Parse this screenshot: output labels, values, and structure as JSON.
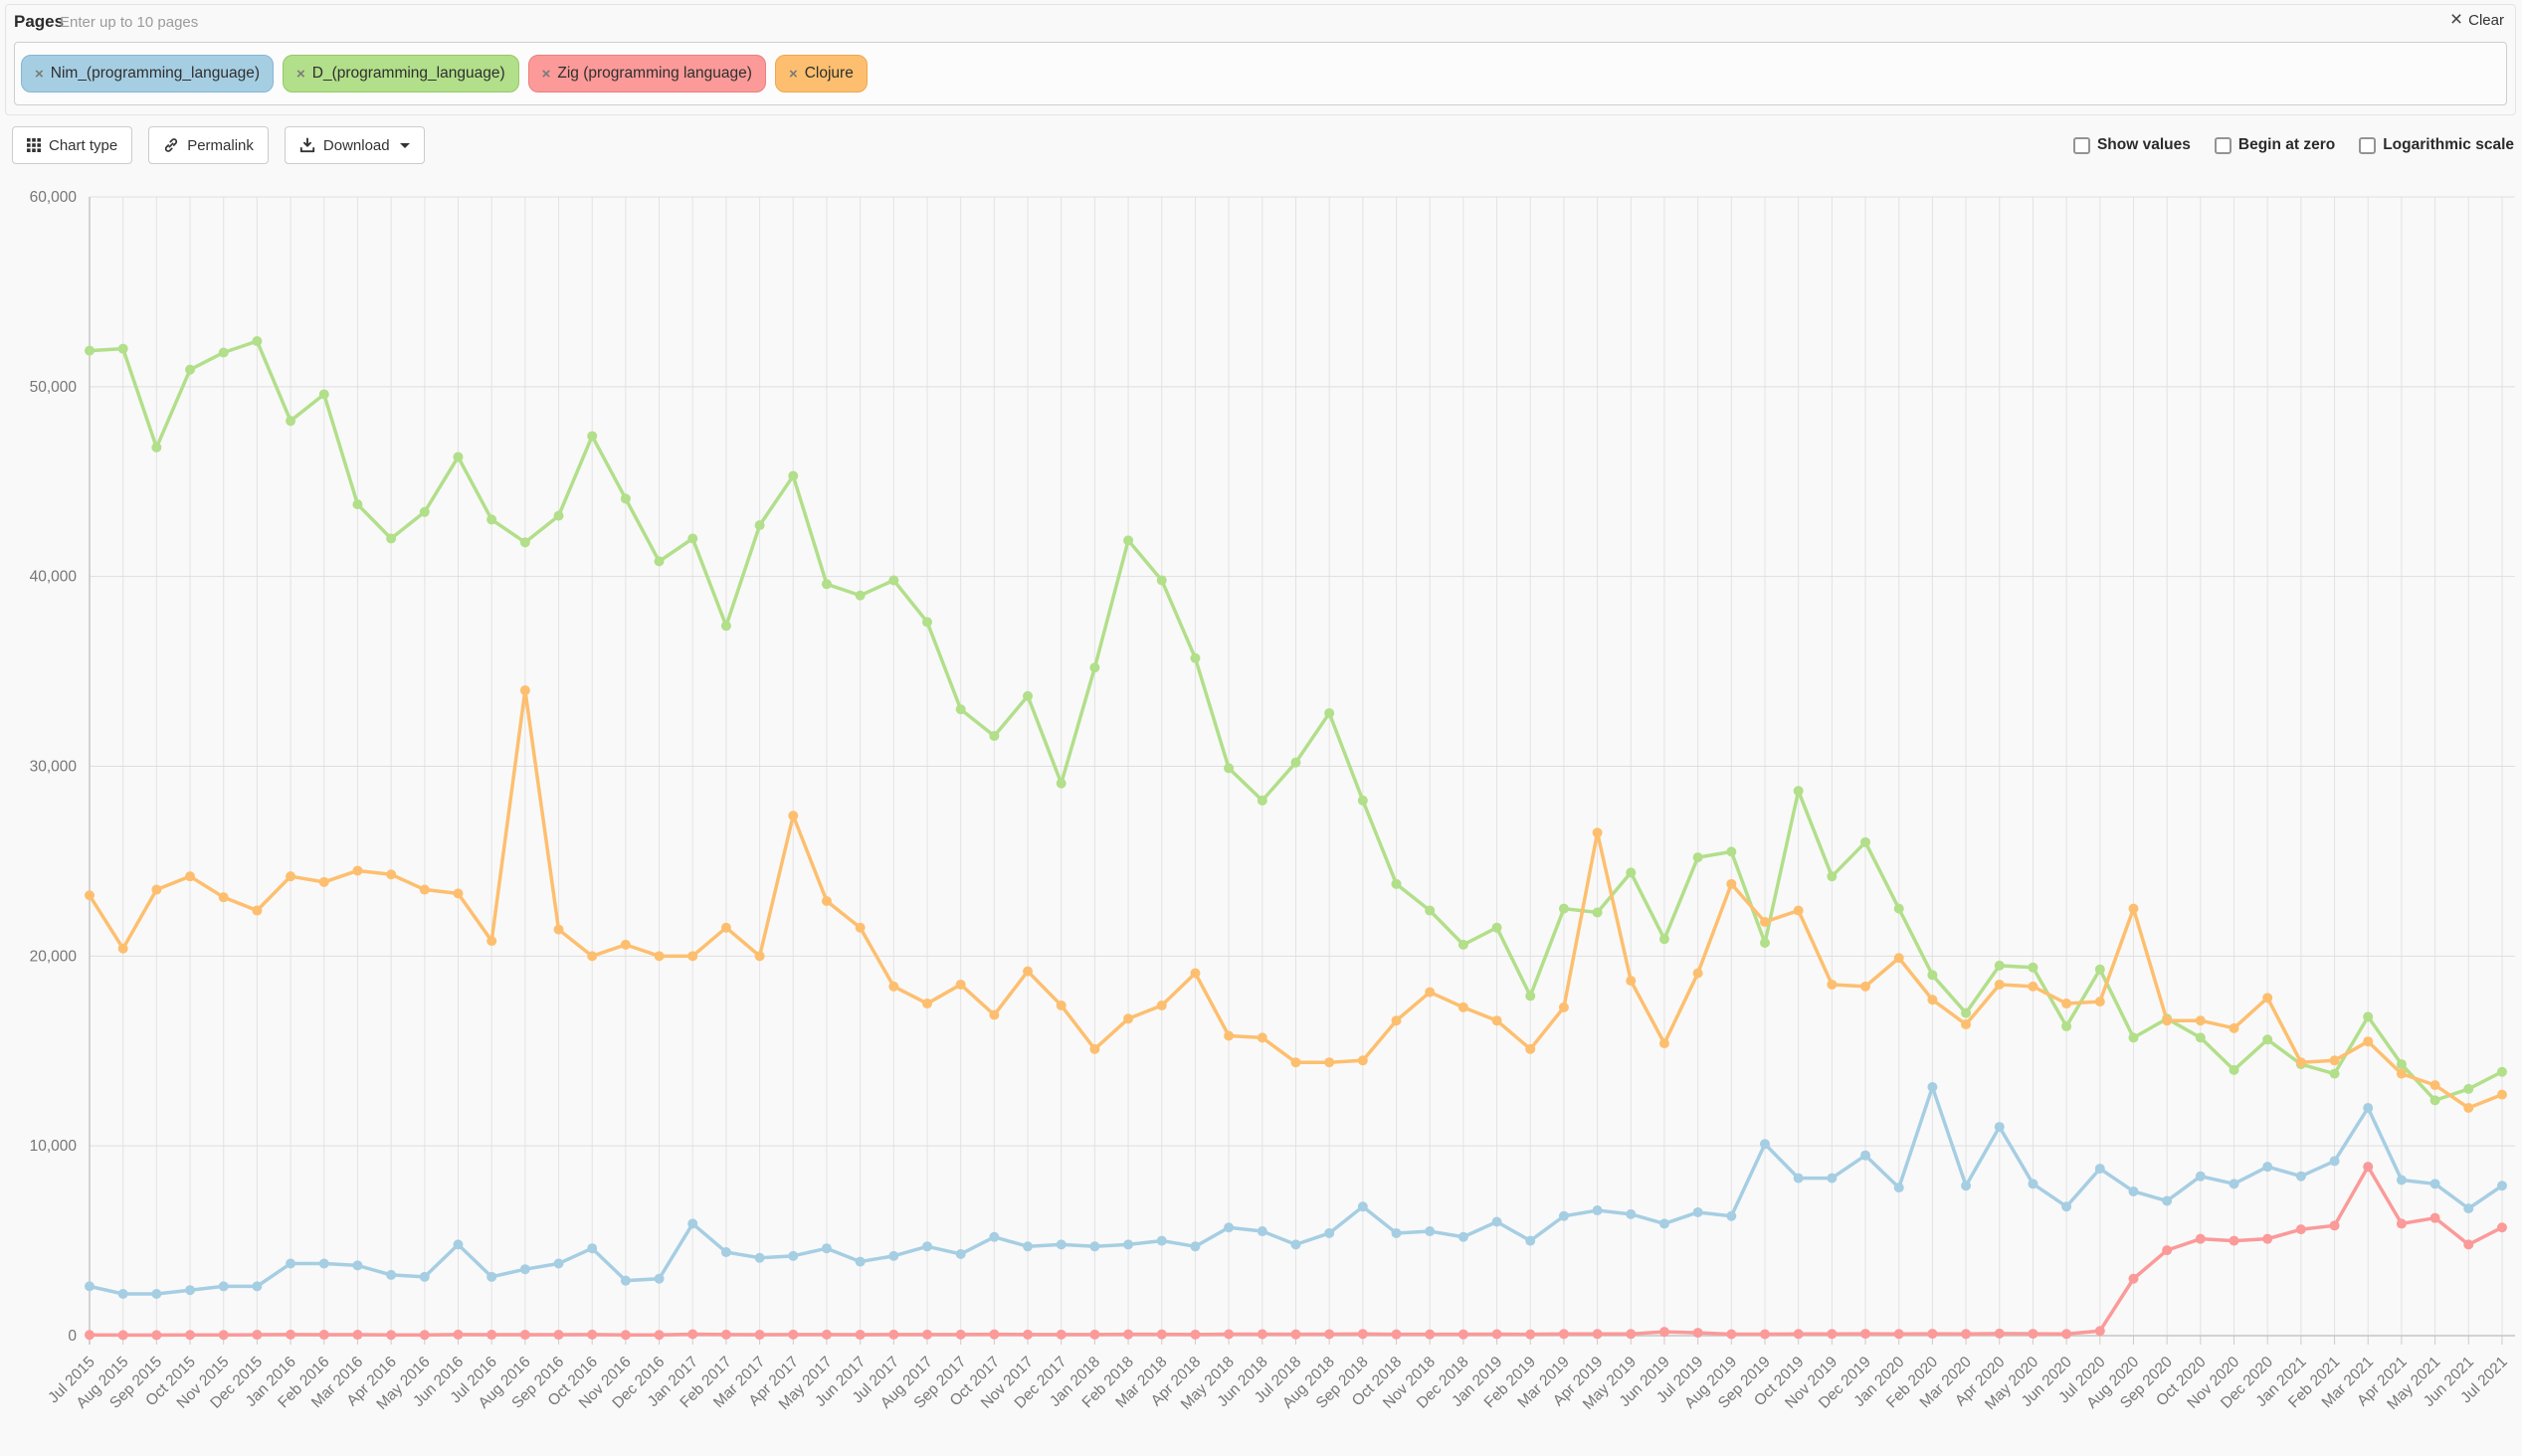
{
  "header": {
    "pages_label": "Pages",
    "pages_placeholder": "Enter up to 10 pages",
    "clear_icon": "×",
    "clear_label": "Clear"
  },
  "chips": [
    {
      "label": "Nim_(programming_language)",
      "remove_icon": "×",
      "color": "#a6cee3",
      "border": "#86b6d4"
    },
    {
      "label": "D_(programming_language)",
      "remove_icon": "×",
      "color": "#b2df8a",
      "border": "#94c96a"
    },
    {
      "label": "Zig (programming language)",
      "remove_icon": "×",
      "color": "#fb9a99",
      "border": "#ec7f7e"
    },
    {
      "label": "Clojure",
      "remove_icon": "×",
      "color": "#fdbf6f",
      "border": "#eda84e"
    }
  ],
  "toolbar": {
    "chart_type_label": "Chart type",
    "permalink_label": "Permalink",
    "download_label": "Download",
    "options": [
      {
        "label": "Show values",
        "checked": false
      },
      {
        "label": "Begin at zero",
        "checked": false
      },
      {
        "label": "Logarithmic scale",
        "checked": false
      }
    ]
  },
  "chart_data": {
    "type": "line",
    "title": "",
    "xlabel": "",
    "ylabel": "",
    "ylim": [
      0,
      60000
    ],
    "ytick_step": 10000,
    "grid": true,
    "legend_position": "chips-above-chart",
    "x": [
      "Jul 2015",
      "Aug 2015",
      "Sep 2015",
      "Oct 2015",
      "Nov 2015",
      "Dec 2015",
      "Jan 2016",
      "Feb 2016",
      "Mar 2016",
      "Apr 2016",
      "May 2016",
      "Jun 2016",
      "Jul 2016",
      "Aug 2016",
      "Sep 2016",
      "Oct 2016",
      "Nov 2016",
      "Dec 2016",
      "Jan 2017",
      "Feb 2017",
      "Mar 2017",
      "Apr 2017",
      "May 2017",
      "Jun 2017",
      "Jul 2017",
      "Aug 2017",
      "Sep 2017",
      "Oct 2017",
      "Nov 2017",
      "Dec 2017",
      "Jan 2018",
      "Feb 2018",
      "Mar 2018",
      "Apr 2018",
      "May 2018",
      "Jun 2018",
      "Jul 2018",
      "Aug 2018",
      "Sep 2018",
      "Oct 2018",
      "Nov 2018",
      "Dec 2018",
      "Jan 2019",
      "Feb 2019",
      "Mar 2019",
      "Apr 2019",
      "May 2019",
      "Jun 2019",
      "Jul 2019",
      "Aug 2019",
      "Sep 2019",
      "Oct 2019",
      "Nov 2019",
      "Dec 2019",
      "Jan 2020",
      "Feb 2020",
      "Mar 2020",
      "Apr 2020",
      "May 2020",
      "Jun 2020",
      "Jul 2020",
      "Aug 2020",
      "Sep 2020",
      "Oct 2020",
      "Nov 2020",
      "Dec 2020",
      "Jan 2021",
      "Feb 2021",
      "Mar 2021",
      "Apr 2021",
      "May 2021",
      "Jun 2021",
      "Jul 2021"
    ],
    "series": [
      {
        "name": "Nim_(programming_language)",
        "color": "#a6cee3",
        "values": [
          2600,
          2200,
          2200,
          2400,
          2600,
          2600,
          3800,
          3800,
          3700,
          3200,
          3100,
          4800,
          3100,
          3500,
          3800,
          4600,
          2900,
          3000,
          5900,
          4400,
          4100,
          4200,
          4600,
          3900,
          4200,
          4700,
          4300,
          5200,
          4700,
          4800,
          4700,
          4800,
          5000,
          4700,
          5700,
          5500,
          4800,
          5400,
          6800,
          5400,
          5500,
          5200,
          6000,
          5000,
          6300,
          6600,
          6400,
          5900,
          6500,
          6300,
          10100,
          8300,
          8300,
          9500,
          7800,
          13100,
          7900,
          11000,
          8000,
          6800,
          8800,
          7600,
          7100,
          8400,
          8000,
          8900,
          8400,
          9200,
          12000,
          8200,
          8000,
          6700,
          7900
        ]
      },
      {
        "name": "D_(programming_language)",
        "color": "#b2df8a",
        "values": [
          51900,
          52000,
          46800,
          50900,
          51800,
          52400,
          48200,
          49600,
          43800,
          42000,
          43400,
          46300,
          43000,
          41800,
          43200,
          47400,
          44100,
          40800,
          42000,
          37400,
          42700,
          45300,
          39600,
          39000,
          39800,
          37600,
          33000,
          31600,
          33700,
          29100,
          35200,
          41900,
          39800,
          35700,
          29900,
          28200,
          30200,
          32800,
          28200,
          23800,
          22400,
          20600,
          21500,
          17900,
          22500,
          22300,
          24400,
          20900,
          25200,
          25500,
          20700,
          28700,
          24200,
          26000,
          22500,
          19000,
          17000,
          19500,
          19400,
          16300,
          19300,
          15700,
          16700,
          15700,
          14000,
          15600,
          14300,
          13800,
          16800,
          14300,
          12400,
          13000,
          13900
        ]
      },
      {
        "name": "Zig (programming language)",
        "color": "#fb9a99",
        "values": [
          40,
          30,
          30,
          40,
          40,
          50,
          60,
          50,
          50,
          40,
          40,
          60,
          50,
          50,
          50,
          60,
          40,
          40,
          80,
          60,
          50,
          60,
          60,
          50,
          60,
          60,
          60,
          70,
          60,
          60,
          60,
          70,
          70,
          60,
          80,
          80,
          70,
          80,
          90,
          70,
          70,
          70,
          80,
          70,
          90,
          90,
          90,
          200,
          150,
          80,
          80,
          90,
          90,
          100,
          90,
          100,
          90,
          110,
          100,
          90,
          250,
          3000,
          4500,
          5100,
          5000,
          5100,
          5600,
          5800,
          8900,
          5900,
          6200,
          4800,
          5700
        ]
      },
      {
        "name": "Clojure",
        "color": "#fdbf6f",
        "values": [
          23200,
          20400,
          23500,
          24200,
          23100,
          22400,
          24200,
          23900,
          24500,
          24300,
          23500,
          23300,
          20800,
          34000,
          21400,
          20000,
          20600,
          20000,
          20000,
          21500,
          20000,
          27400,
          22900,
          21500,
          18400,
          17500,
          18500,
          16900,
          19200,
          17400,
          15100,
          16700,
          17400,
          19100,
          15800,
          15700,
          14400,
          14400,
          14500,
          16600,
          18100,
          17300,
          16600,
          15100,
          17300,
          26500,
          18700,
          15400,
          19100,
          23800,
          21800,
          22400,
          18500,
          18400,
          19900,
          17700,
          16400,
          18500,
          18400,
          17500,
          17600,
          22500,
          16600,
          16600,
          16200,
          17800,
          14400,
          14500,
          15500,
          13800,
          13200,
          12000,
          12700
        ]
      }
    ]
  }
}
